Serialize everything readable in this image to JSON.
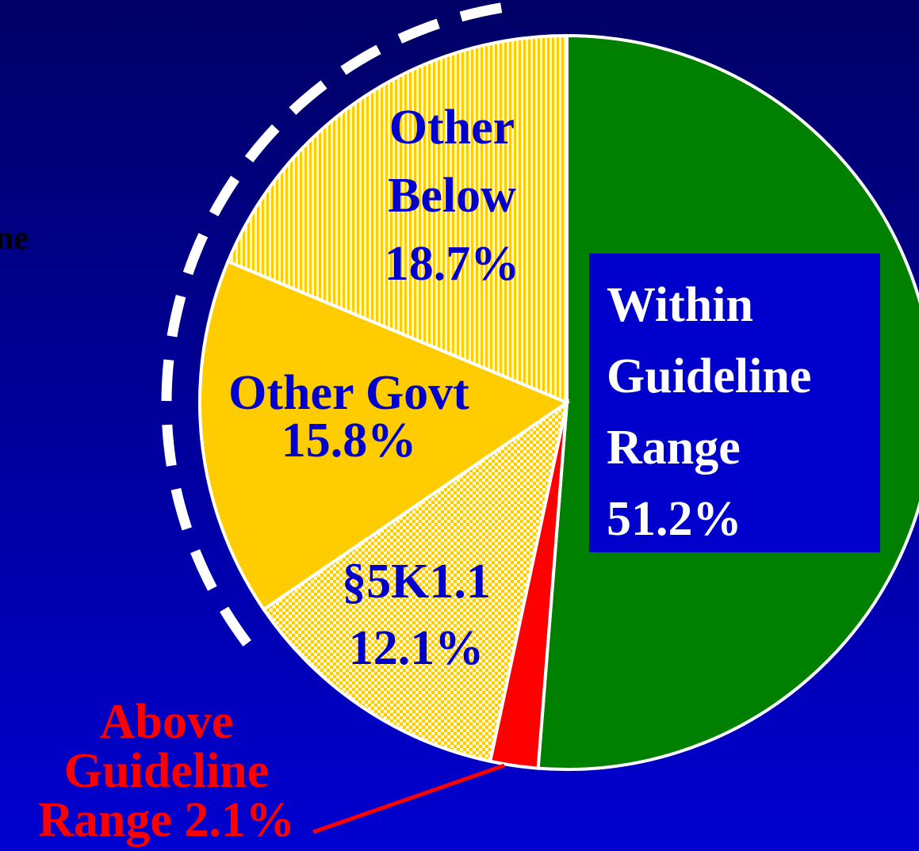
{
  "chart_data": {
    "type": "pie",
    "annotation": "ne",
    "categories": [
      "Within Guideline Range",
      "Above Guideline Range",
      "§5K1.1",
      "Other Govt",
      "Other Below"
    ],
    "values": [
      51.2,
      2.1,
      12.1,
      15.8,
      18.7
    ],
    "value_labels": [
      "51.2%",
      "2.1%",
      "12.1%",
      "15.8%",
      "18.7%"
    ],
    "colors": [
      "#008000",
      "#ff0000",
      "#ffcc00",
      "#ffcc00",
      "#ffcc00"
    ],
    "patterns": [
      "solid",
      "solid",
      "checker",
      "solid",
      "vertical-stripes"
    ],
    "label_colors": [
      "#ffffff",
      "#ff0000",
      "#0000cc",
      "#0000cc",
      "#0000cc"
    ]
  }
}
